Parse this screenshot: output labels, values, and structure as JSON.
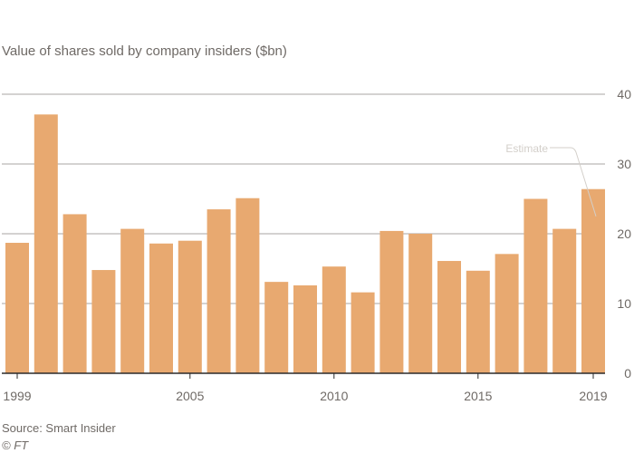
{
  "chart_data": {
    "type": "bar",
    "title": "Value of shares sold by company insiders ($bn)",
    "categories": [
      "1999",
      "2000",
      "2001",
      "2002",
      "2003",
      "2004",
      "2005",
      "2006",
      "2007",
      "2008",
      "2009",
      "2010",
      "2011",
      "2012",
      "2013",
      "2014",
      "2015",
      "2016",
      "2017",
      "2018",
      "2019"
    ],
    "values": [
      18.7,
      37.1,
      22.8,
      14.8,
      20.7,
      18.6,
      19.0,
      23.5,
      25.1,
      13.1,
      12.6,
      15.3,
      11.6,
      20.4,
      20.0,
      16.1,
      14.7,
      17.1,
      25.0,
      20.7,
      26.4
    ],
    "x_tick_labels": [
      {
        "category": "1999",
        "label": "1999"
      },
      {
        "category": "2005",
        "label": "2005"
      },
      {
        "category": "2010",
        "label": "2010"
      },
      {
        "category": "2015",
        "label": "2015"
      },
      {
        "category": "2019",
        "label": "2019"
      }
    ],
    "ylim": [
      0,
      40
    ],
    "y_ticks": [
      0,
      10,
      20,
      30,
      40
    ],
    "y_axis_side": "right",
    "grid": true,
    "bar_color": "#e8a970",
    "annotation": {
      "label": "Estimate",
      "category": "2019"
    },
    "source": "Source: Smart Insider",
    "copyright": "© FT"
  }
}
